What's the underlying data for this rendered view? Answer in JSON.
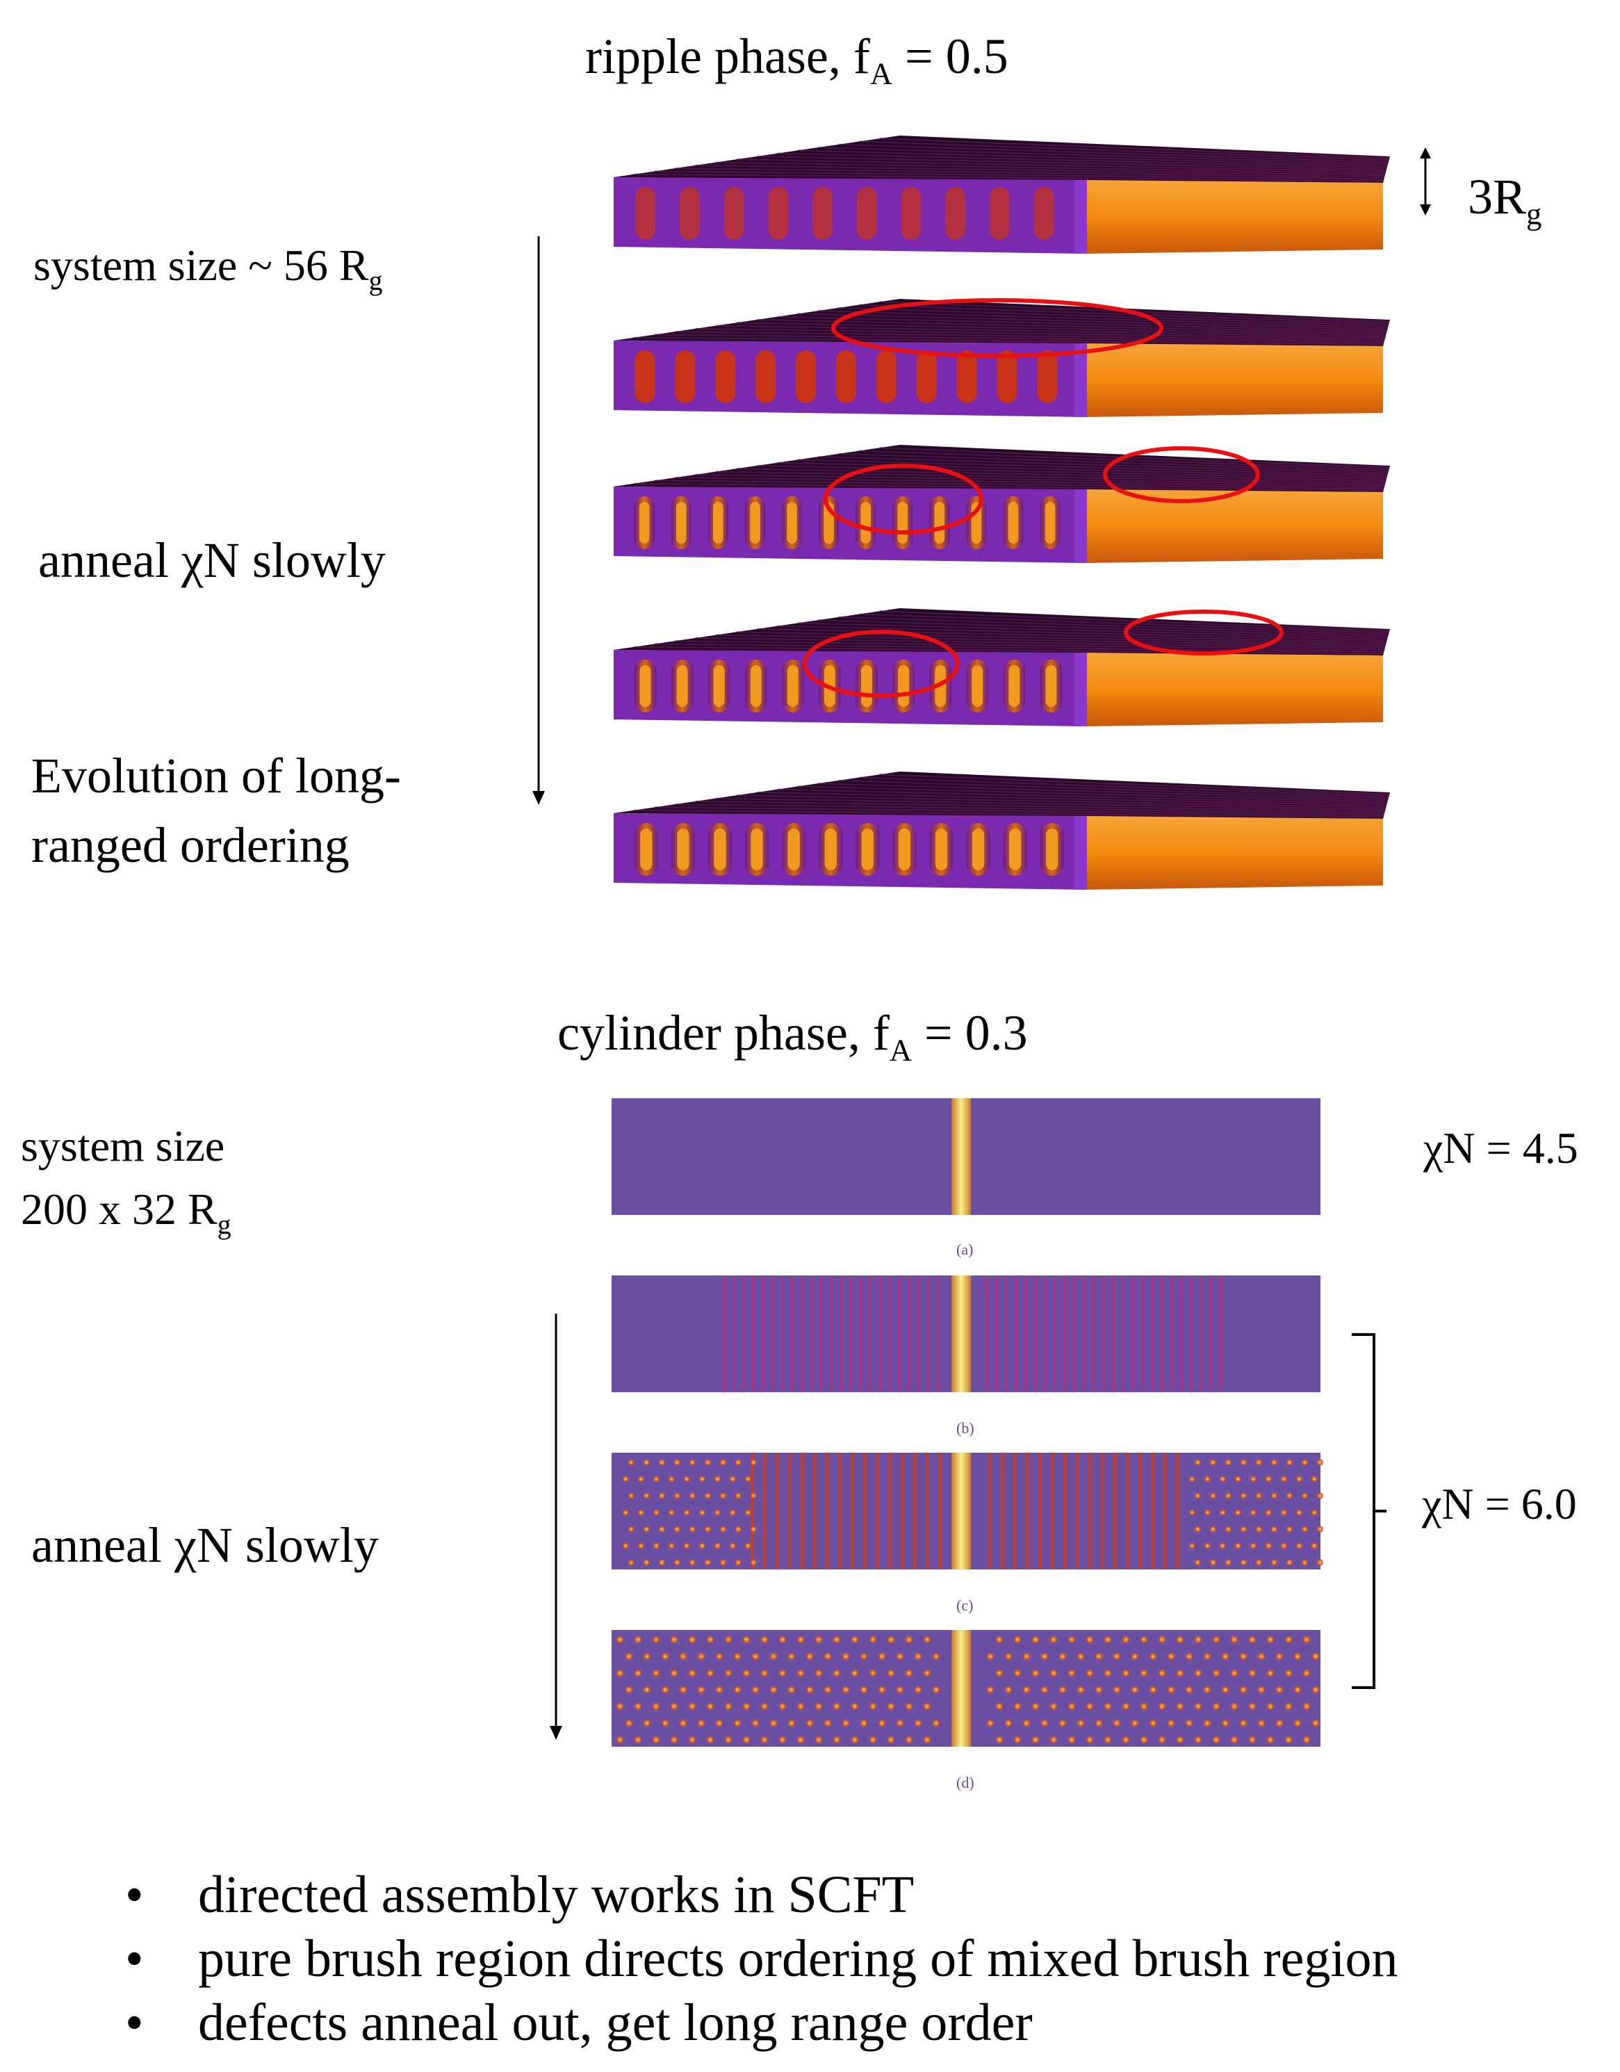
{
  "top": {
    "title_prefix": "ripple phase, f",
    "title_sub": "A",
    "title_suffix": " = 0.5",
    "system_size_prefix": "system size ~ 56 R",
    "system_size_sub": "g",
    "thickness_prefix": "3R",
    "thickness_sub": "g",
    "anneal_label": "anneal χN slowly",
    "evolution_line1": "Evolution of long-",
    "evolution_line2": "ranged ordering",
    "slab_count": 5
  },
  "bottom": {
    "title_prefix": "cylinder phase, f",
    "title_sub": "A",
    "title_suffix": " = 0.3",
    "system_size_line1": "system size",
    "system_size_line2_prefix": "200 x 32 R",
    "system_size_line2_sub": "g",
    "anneal_label": "anneal χN slowly",
    "chi_a": "χN = 4.5",
    "chi_bcd": "χN = 6.0",
    "captions": [
      "(a)",
      "(b)",
      "(c)",
      "(d)"
    ]
  },
  "bullets": [
    "directed assembly works in SCFT",
    "pure brush region directs ordering of mixed brush region",
    "defects anneal out, get long range order"
  ],
  "colors": {
    "purple": "#6b4fa3",
    "orange": "#f28a10",
    "dark": "#2a0a2e",
    "red_marker": "#e81010",
    "yellow": "#f6e26a"
  }
}
